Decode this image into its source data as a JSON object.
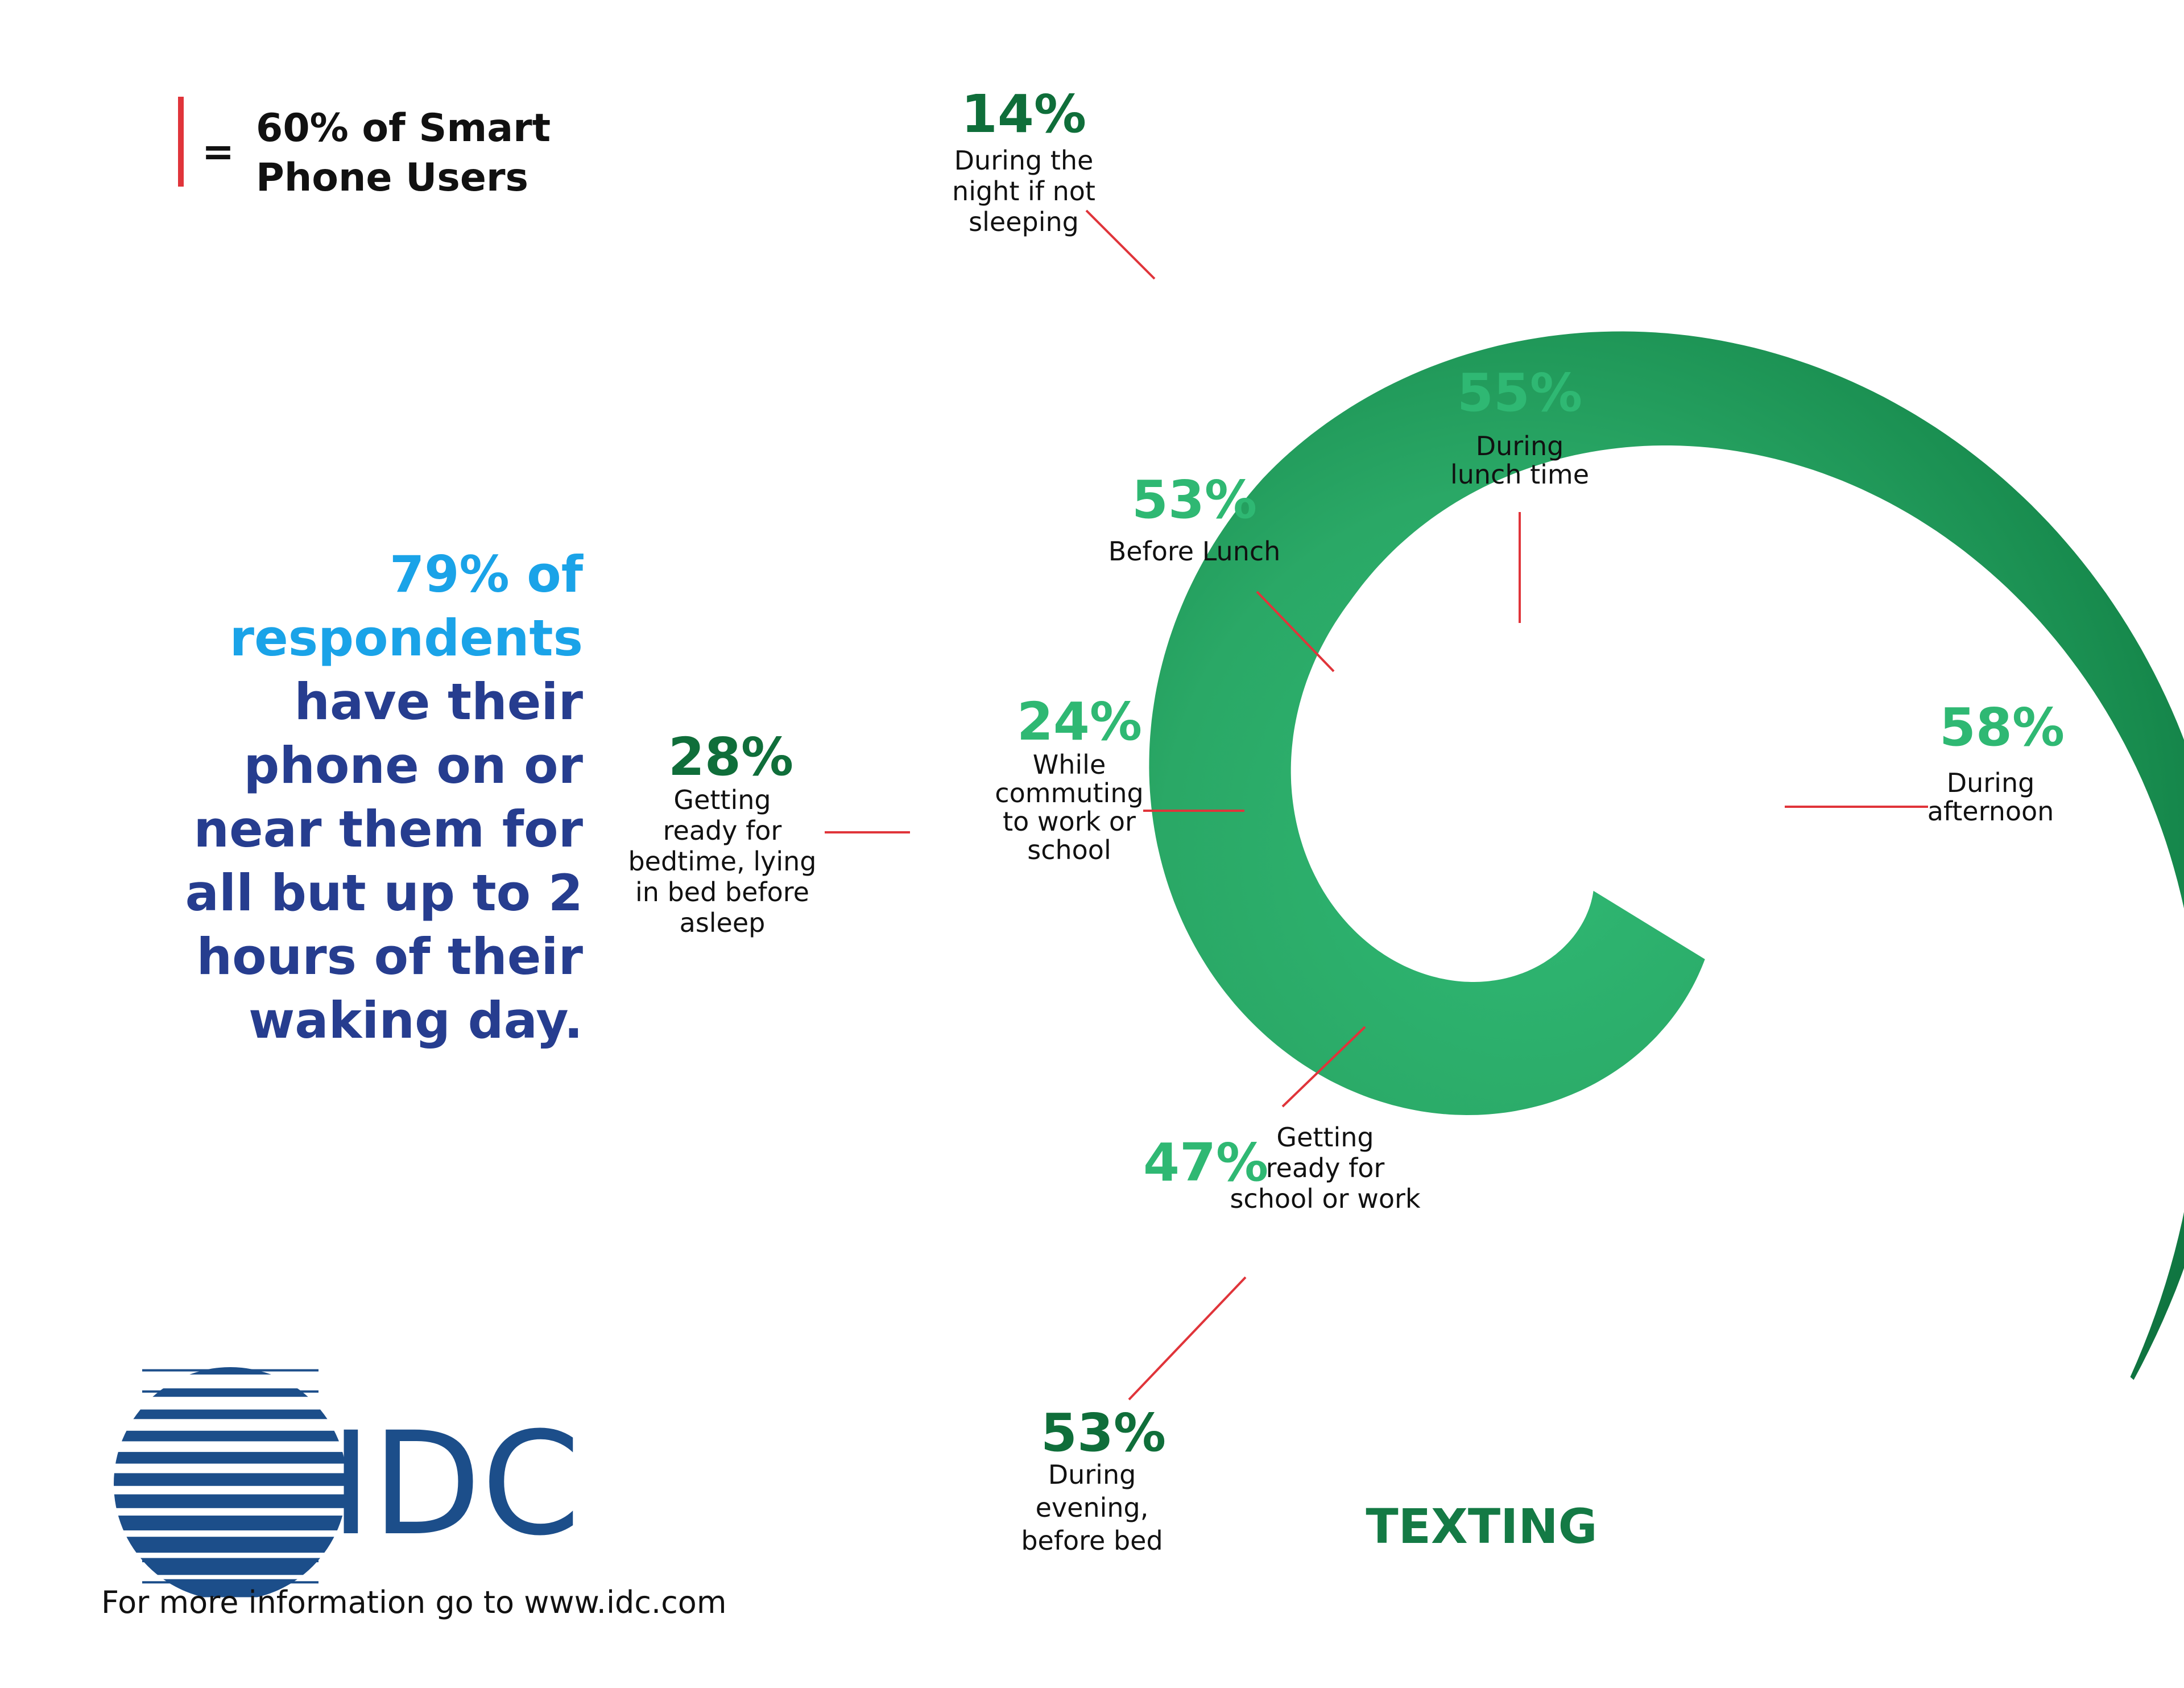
{
  "legend": {
    "marker_color": "#e0343a",
    "equals": "=",
    "lines": [
      "60% of Smart",
      "Phone Users"
    ]
  },
  "headline": {
    "highlight_lines": [
      "79% of",
      "respondents"
    ],
    "body_lines": [
      "have their",
      "phone on or",
      "near them for",
      "all but up to 2",
      "hours of their",
      "waking day."
    ],
    "highlight_color": "#1aa3e8",
    "body_color": "#263d8f"
  },
  "logo": {
    "text": "IDC",
    "color": "#1c4e8a",
    "icon": "idc-globe-logo"
  },
  "footer": {
    "text": "For more information go to www.idc.com"
  },
  "colors": {
    "leader_line": "#e0343a",
    "inner_green": "#2fb873",
    "outer_green": "#0f7440",
    "label_dark": "#0f6e3a",
    "label_light": "#2fb873"
  },
  "chart_data": {
    "type": "spiral",
    "title": "TEXTING",
    "unit": "%",
    "categories": [
      "Getting ready for school or work",
      "While commuting to work or school",
      "Before Lunch",
      "During lunch time",
      "During afternoon",
      "During evening, before bed",
      "Getting ready for bedtime, lying in bed before asleep",
      "During the night if not sleeping"
    ],
    "values": [
      47,
      24,
      53,
      55,
      58,
      53,
      28,
      14
    ],
    "labels": [
      {
        "pct": "47%",
        "lines": [
          "Getting",
          "ready for",
          "school or work"
        ]
      },
      {
        "pct": "24%",
        "lines": [
          "While",
          "commuting",
          "to work or",
          "school"
        ]
      },
      {
        "pct": "53%",
        "lines": [
          "Before Lunch"
        ]
      },
      {
        "pct": "55%",
        "lines": [
          "During",
          "lunch time"
        ]
      },
      {
        "pct": "58%",
        "lines": [
          "During",
          "afternoon"
        ]
      },
      {
        "pct": "53%",
        "lines": [
          "During",
          "evening,",
          "before bed"
        ]
      },
      {
        "pct": "28%",
        "lines": [
          "Getting",
          "ready for",
          "bedtime, lying",
          "in bed before",
          "asleep"
        ]
      },
      {
        "pct": "14%",
        "lines": [
          "During the",
          "night if not",
          "sleeping"
        ]
      }
    ]
  }
}
